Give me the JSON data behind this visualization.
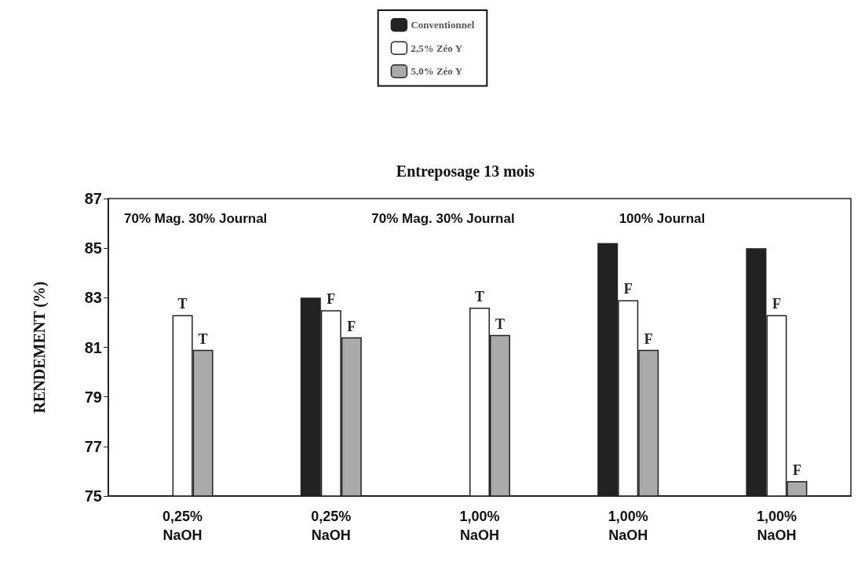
{
  "chart_data": {
    "type": "bar",
    "title": "Entreposage 13 mois",
    "ylabel": "RENDEMENT (%)",
    "categories": [
      "0,25%\nNaOH",
      "0,25%\nNaOH",
      "1,00%\nNaOH",
      "1,00%\nNaOH",
      "1,00%\nNaOH"
    ],
    "series": [
      {
        "name": "Conventionnel",
        "color": "#222222",
        "values": [
          null,
          83.0,
          null,
          85.2,
          85.0
        ]
      },
      {
        "name": "2,5% Zéo Y",
        "color": "#ffffff",
        "values": [
          82.3,
          82.5,
          82.6,
          82.9,
          82.3
        ],
        "value_labels": [
          "T",
          "F",
          "T",
          "F",
          "F"
        ]
      },
      {
        "name": "5,0% Zéo Y",
        "color": "#aaaaaa",
        "values": [
          80.9,
          81.4,
          81.5,
          80.9,
          75.6
        ],
        "value_labels": [
          "T",
          "F",
          "T",
          "F",
          "F"
        ]
      }
    ],
    "annotations": [
      "70% Mag. 30% Journal",
      "70% Mag. 30% Journal",
      "100% Journal"
    ],
    "ylim": [
      75,
      87
    ],
    "yticks": [
      75,
      77,
      79,
      81,
      83,
      85,
      87
    ],
    "grid": false,
    "legend": "top"
  }
}
